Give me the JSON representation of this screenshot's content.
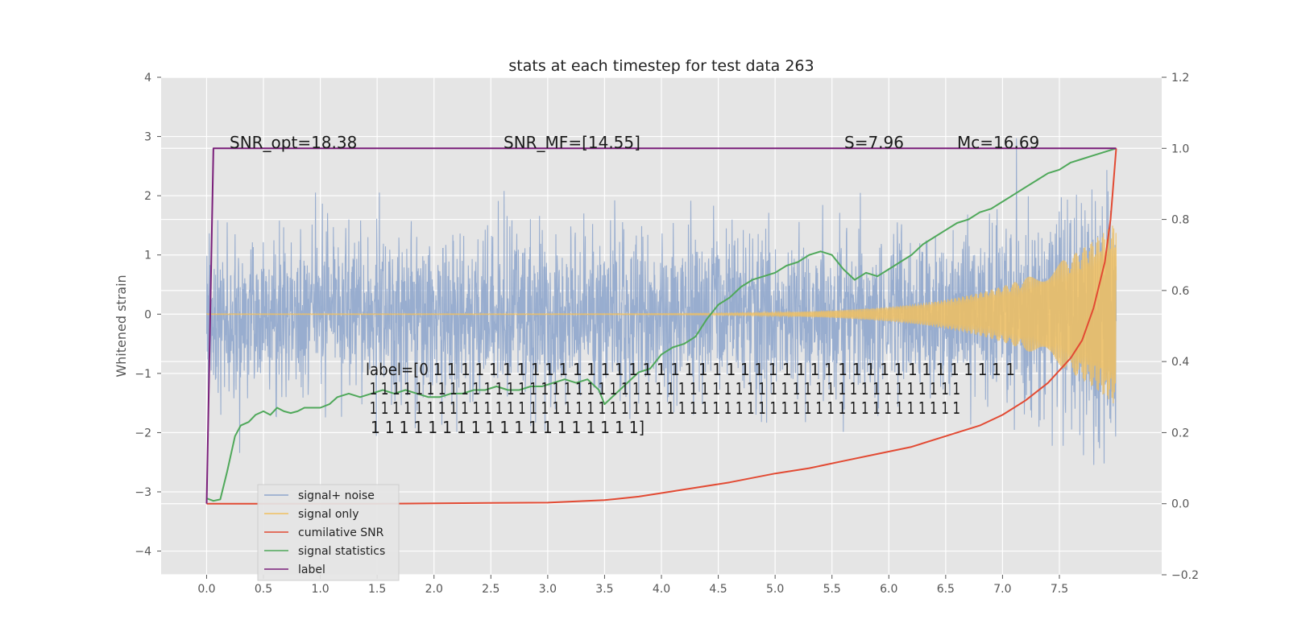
{
  "chart_data": {
    "type": "line",
    "title": "stats at each timestep for test data 263",
    "ylabel": "Whitened strain",
    "xlabel": "",
    "xlim": [
      -0.4,
      8.4
    ],
    "ylim": [
      -4.4,
      4.0
    ],
    "y2lim": [
      -0.2,
      1.2
    ],
    "grid": true,
    "x_ticks": [
      "0.0",
      "0.5",
      "1.0",
      "1.5",
      "2.0",
      "2.5",
      "3.0",
      "3.5",
      "4.0",
      "4.5",
      "5.0",
      "5.5",
      "6.0",
      "6.5",
      "7.0",
      "7.5"
    ],
    "y_ticks": [
      "4",
      "3",
      "2",
      "1",
      "0",
      "−1",
      "−2",
      "−3",
      "−4"
    ],
    "y2_ticks": [
      "1.2",
      "1.0",
      "0.8",
      "0.6",
      "0.4",
      "0.2",
      "0.0",
      "−0.2"
    ],
    "annotations": {
      "snr_opt": "SNR_opt=18.38",
      "snr_mf": "SNR_MF=[14.55]",
      "s": "S=7.96",
      "mc": "Mc=16.69",
      "label_lines": [
        "label=[0 1 1 1 1 1 1 1 1 1 1 1 1 1 1 1 1 1 1 1 1 1 1 1 1 1 1 1 1 1 1 1 1 1 1 1 1 1 1 1 1 1 1",
        " 1 1 1 1 1 1 1 1 1 1 1 1 1 1 1 1 1 1 1 1 1 1 1 1 1 1 1 1 1 1 1 1 1 1 1 1 1 1 1 1 1 1 1 1 1 1 1 1 1 1 1 1",
        " 1 1 1 1 1 1 1 1 1 1 1 1 1 1 1 1 1 1 1 1 1 1 1 1 1 1 1 1 1 1 1 1 1 1 1 1 1 1 1 1 1 1 1 1 1 1 1 1 1 1 1 1",
        " 1 1 1 1 1 1 1 1 1 1 1 1 1 1 1 1 1 1 1]"
      ]
    },
    "legend": {
      "position": "lower left",
      "entries": [
        {
          "name": "signal+ noise",
          "color": "#8fa6cc"
        },
        {
          "name": "signal only",
          "color": "#f0c060"
        },
        {
          "name": "cumilative SNR",
          "color": "#e24a33"
        },
        {
          "name": "signal statistics",
          "color": "#4fa85a"
        },
        {
          "name": "label",
          "color": "#7a1f7a"
        }
      ]
    },
    "series": [
      {
        "name": "signal statistics",
        "axis": "right",
        "color": "#4fa85a",
        "x": [
          0.0,
          0.06,
          0.12,
          0.18,
          0.25,
          0.3,
          0.37,
          0.43,
          0.5,
          0.56,
          0.62,
          0.68,
          0.74,
          0.8,
          0.86,
          0.92,
          1.0,
          1.08,
          1.15,
          1.25,
          1.35,
          1.45,
          1.55,
          1.65,
          1.75,
          1.85,
          1.95,
          2.05,
          2.15,
          2.25,
          2.35,
          2.45,
          2.55,
          2.65,
          2.75,
          2.85,
          2.95,
          3.05,
          3.15,
          3.25,
          3.35,
          3.45,
          3.5,
          3.6,
          3.7,
          3.8,
          3.9,
          4.0,
          4.1,
          4.2,
          4.3,
          4.4,
          4.5,
          4.6,
          4.7,
          4.8,
          4.9,
          5.0,
          5.1,
          5.2,
          5.3,
          5.4,
          5.5,
          5.6,
          5.7,
          5.8,
          5.9,
          6.0,
          6.1,
          6.2,
          6.3,
          6.4,
          6.5,
          6.6,
          6.7,
          6.8,
          6.9,
          7.0,
          7.1,
          7.2,
          7.3,
          7.4,
          7.5,
          7.6,
          7.7,
          7.8,
          7.9,
          8.0
        ],
        "y": [
          0.015,
          0.008,
          0.012,
          0.09,
          0.19,
          0.22,
          0.23,
          0.25,
          0.26,
          0.25,
          0.27,
          0.26,
          0.255,
          0.26,
          0.27,
          0.27,
          0.27,
          0.28,
          0.3,
          0.31,
          0.3,
          0.31,
          0.32,
          0.31,
          0.32,
          0.31,
          0.3,
          0.3,
          0.31,
          0.31,
          0.32,
          0.32,
          0.33,
          0.32,
          0.32,
          0.33,
          0.33,
          0.34,
          0.35,
          0.34,
          0.35,
          0.32,
          0.28,
          0.31,
          0.34,
          0.37,
          0.38,
          0.42,
          0.44,
          0.45,
          0.47,
          0.52,
          0.56,
          0.58,
          0.61,
          0.63,
          0.64,
          0.65,
          0.67,
          0.68,
          0.7,
          0.71,
          0.7,
          0.66,
          0.63,
          0.65,
          0.64,
          0.66,
          0.68,
          0.7,
          0.73,
          0.75,
          0.77,
          0.79,
          0.8,
          0.82,
          0.83,
          0.85,
          0.87,
          0.89,
          0.91,
          0.93,
          0.94,
          0.96,
          0.97,
          0.98,
          0.99,
          1.0
        ]
      },
      {
        "name": "cumilative SNR",
        "axis": "right",
        "color": "#e24a33",
        "x": [
          0.0,
          0.5,
          1.0,
          1.5,
          2.0,
          2.5,
          3.0,
          3.2,
          3.5,
          3.8,
          4.0,
          4.3,
          4.6,
          5.0,
          5.3,
          5.6,
          5.9,
          6.2,
          6.5,
          6.8,
          7.0,
          7.2,
          7.4,
          7.6,
          7.7,
          7.8,
          7.9,
          7.95,
          8.0
        ],
        "y": [
          0.0,
          0.0,
          0.0,
          0.0,
          0.001,
          0.002,
          0.003,
          0.006,
          0.01,
          0.02,
          0.03,
          0.045,
          0.06,
          0.085,
          0.1,
          0.12,
          0.14,
          0.16,
          0.19,
          0.22,
          0.25,
          0.29,
          0.34,
          0.41,
          0.46,
          0.55,
          0.68,
          0.8,
          1.0
        ]
      },
      {
        "name": "label",
        "axis": "right",
        "color": "#7a1f7a",
        "x": [
          0.0,
          0.06,
          8.0
        ],
        "y": [
          0.0,
          1.0,
          1.0
        ]
      }
    ]
  }
}
